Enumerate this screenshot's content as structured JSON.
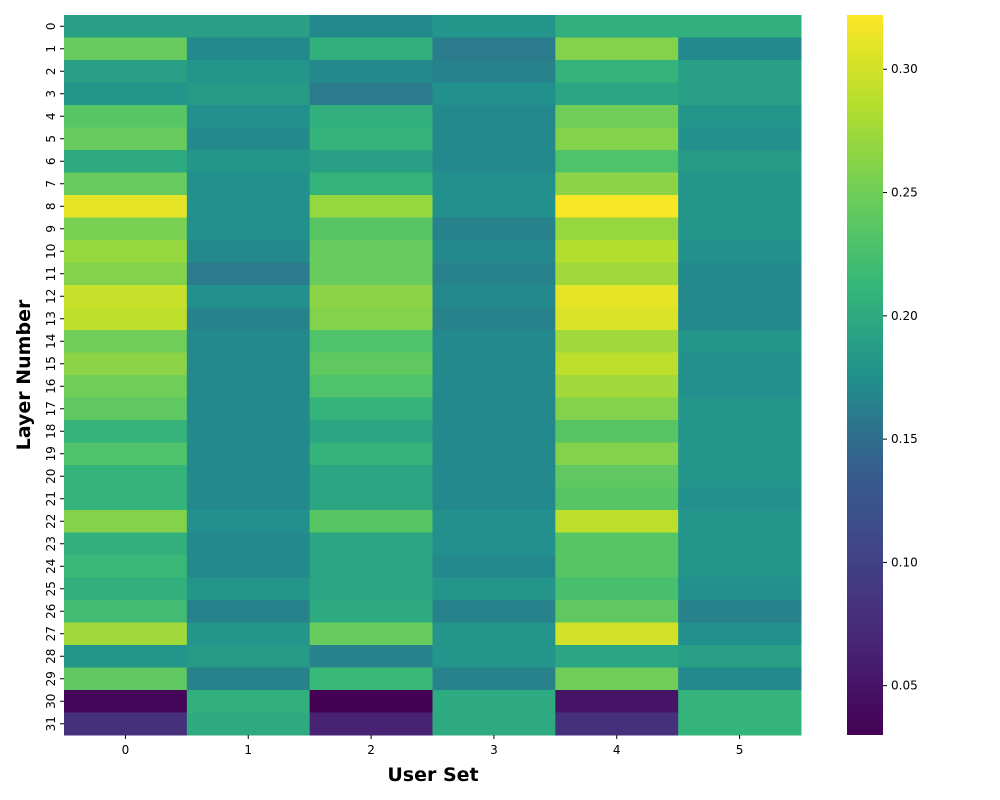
{
  "chart_data": {
    "type": "heatmap",
    "title": "",
    "xlabel": "User Set",
    "ylabel": "Layer Number",
    "x_categories": [
      "0",
      "1",
      "2",
      "3",
      "4",
      "5"
    ],
    "y_categories": [
      "0",
      "1",
      "2",
      "3",
      "4",
      "5",
      "6",
      "7",
      "8",
      "9",
      "10",
      "11",
      "12",
      "13",
      "14",
      "15",
      "16",
      "17",
      "18",
      "19",
      "20",
      "21",
      "22",
      "23",
      "24",
      "25",
      "26",
      "27",
      "28",
      "29",
      "30",
      "31"
    ],
    "values": [
      [
        0.19,
        0.19,
        0.17,
        0.18,
        0.205,
        0.205
      ],
      [
        0.245,
        0.17,
        0.205,
        0.16,
        0.26,
        0.17
      ],
      [
        0.19,
        0.18,
        0.17,
        0.165,
        0.21,
        0.19
      ],
      [
        0.18,
        0.185,
        0.16,
        0.175,
        0.195,
        0.19
      ],
      [
        0.235,
        0.175,
        0.205,
        0.17,
        0.25,
        0.18
      ],
      [
        0.245,
        0.17,
        0.21,
        0.17,
        0.26,
        0.175
      ],
      [
        0.2,
        0.18,
        0.19,
        0.17,
        0.23,
        0.185
      ],
      [
        0.245,
        0.175,
        0.21,
        0.175,
        0.265,
        0.18
      ],
      [
        0.31,
        0.175,
        0.27,
        0.175,
        0.32,
        0.18
      ],
      [
        0.255,
        0.175,
        0.235,
        0.165,
        0.27,
        0.18
      ],
      [
        0.27,
        0.17,
        0.245,
        0.17,
        0.285,
        0.175
      ],
      [
        0.26,
        0.16,
        0.245,
        0.165,
        0.275,
        0.17
      ],
      [
        0.295,
        0.175,
        0.265,
        0.17,
        0.31,
        0.17
      ],
      [
        0.29,
        0.165,
        0.26,
        0.165,
        0.305,
        0.17
      ],
      [
        0.25,
        0.17,
        0.23,
        0.17,
        0.275,
        0.18
      ],
      [
        0.265,
        0.17,
        0.24,
        0.17,
        0.29,
        0.175
      ],
      [
        0.25,
        0.17,
        0.23,
        0.17,
        0.275,
        0.175
      ],
      [
        0.24,
        0.17,
        0.21,
        0.17,
        0.26,
        0.18
      ],
      [
        0.21,
        0.17,
        0.195,
        0.17,
        0.235,
        0.18
      ],
      [
        0.23,
        0.17,
        0.21,
        0.17,
        0.26,
        0.18
      ],
      [
        0.21,
        0.17,
        0.195,
        0.17,
        0.24,
        0.18
      ],
      [
        0.21,
        0.17,
        0.195,
        0.17,
        0.235,
        0.175
      ],
      [
        0.26,
        0.175,
        0.235,
        0.175,
        0.29,
        0.18
      ],
      [
        0.205,
        0.17,
        0.195,
        0.175,
        0.235,
        0.18
      ],
      [
        0.215,
        0.17,
        0.195,
        0.17,
        0.235,
        0.18
      ],
      [
        0.205,
        0.18,
        0.195,
        0.18,
        0.225,
        0.175
      ],
      [
        0.22,
        0.165,
        0.2,
        0.165,
        0.24,
        0.165
      ],
      [
        0.275,
        0.18,
        0.245,
        0.18,
        0.3,
        0.175
      ],
      [
        0.18,
        0.185,
        0.165,
        0.18,
        0.195,
        0.19
      ],
      [
        0.24,
        0.165,
        0.215,
        0.165,
        0.25,
        0.17
      ],
      [
        0.035,
        0.205,
        0.03,
        0.2,
        0.05,
        0.21
      ],
      [
        0.08,
        0.2,
        0.065,
        0.2,
        0.08,
        0.21
      ]
    ],
    "colorscale": "viridis",
    "vmin": 0.03,
    "vmax": 0.322,
    "colorbar_ticks": [
      "0.05",
      "0.10",
      "0.15",
      "0.20",
      "0.25",
      "0.30"
    ],
    "colorbar_tick_values": [
      0.05,
      0.1,
      0.15,
      0.2,
      0.25,
      0.3
    ],
    "grid": false,
    "legend": "colorbar-right"
  }
}
